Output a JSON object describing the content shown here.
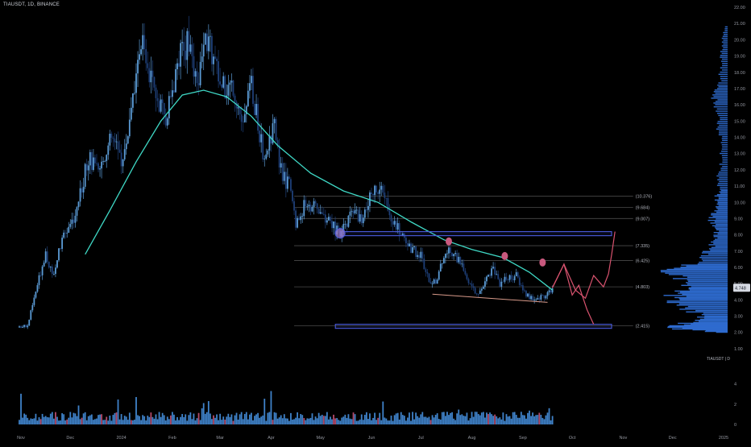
{
  "header": {
    "symbol_info": "TIAUSDT, 1D, BINANCE"
  },
  "watermark": "TIAUSDT | D",
  "colors": {
    "background": "#000000",
    "candle_up": "#5b9bd5",
    "candle_down": "#1e3f78",
    "volume_up": "#3f82c9",
    "volume_down": "#b34a6a",
    "moving_average": "#3fd9c6",
    "fib_line": "#4a4a4a",
    "box_border": "#4b5bdc",
    "projection": "#d9536f",
    "marker": "#c8597e",
    "support_line": "#d89a8a",
    "last_price_bg": "#d5d9e2"
  },
  "chart_data": {
    "type": "candlestick",
    "symbol": "TIAUSDT",
    "interval": "1D",
    "exchange": "BINANCE",
    "last_price_label": "4.748",
    "price_axis": {
      "ticks": [
        "1.00",
        "2.00",
        "3.00",
        "4.00",
        "5.00",
        "6.00",
        "7.00",
        "8.00",
        "9.00",
        "10.00",
        "11.00",
        "12.00",
        "13.00",
        "14.00",
        "15.00",
        "16.00",
        "17.00",
        "18.00",
        "19.00",
        "20.00",
        "21.00",
        "22.00"
      ],
      "ylim": [
        0.5,
        22.3
      ]
    },
    "volume_axis": {
      "ticks": [
        "0",
        "2",
        "4"
      ],
      "ylim": [
        0,
        5
      ]
    },
    "time_axis": {
      "labels": [
        "Nov",
        "Dec",
        "2024",
        "Feb",
        "Mar",
        "Apr",
        "May",
        "Jun",
        "Jul",
        "Aug",
        "Sep",
        "Oct",
        "Nov",
        "Dec",
        "2025"
      ],
      "label_dates": [
        "2023-11-01",
        "2023-12-01",
        "2024-01-01",
        "2024-02-01",
        "2024-03-01",
        "2024-04-01",
        "2024-05-01",
        "2024-06-01",
        "2024-07-01",
        "2024-08-01",
        "2024-09-01",
        "2024-10-01",
        "2024-11-01",
        "2024-12-01",
        "2025-01-01"
      ]
    },
    "price_anchors": [
      [
        "2023-10-31",
        2.3
      ],
      [
        "2023-11-05",
        2.4
      ],
      [
        "2023-11-10",
        4.5
      ],
      [
        "2023-11-16",
        7.0
      ],
      [
        "2023-11-20",
        5.5
      ],
      [
        "2023-11-27",
        8.0
      ],
      [
        "2023-12-05",
        9.5
      ],
      [
        "2023-12-12",
        12.8
      ],
      [
        "2023-12-18",
        11.8
      ],
      [
        "2023-12-26",
        14.0
      ],
      [
        "2024-01-02",
        12.5
      ],
      [
        "2024-01-08",
        16.3
      ],
      [
        "2024-01-14",
        20.0
      ],
      [
        "2024-01-20",
        17.0
      ],
      [
        "2024-01-28",
        15.0
      ],
      [
        "2024-02-06",
        19.0
      ],
      [
        "2024-02-10",
        19.8
      ],
      [
        "2024-02-16",
        17.0
      ],
      [
        "2024-02-21",
        20.3
      ],
      [
        "2024-02-25",
        19.2
      ],
      [
        "2024-03-02",
        17.0
      ],
      [
        "2024-03-09",
        17.3
      ],
      [
        "2024-03-15",
        14.6
      ],
      [
        "2024-03-20",
        17.2
      ],
      [
        "2024-03-27",
        13.0
      ],
      [
        "2024-04-03",
        14.5
      ],
      [
        "2024-04-08",
        11.5
      ],
      [
        "2024-04-13",
        11.0
      ],
      [
        "2024-04-16",
        8.6
      ],
      [
        "2024-04-22",
        10.0
      ],
      [
        "2024-04-29",
        9.6
      ],
      [
        "2024-05-07",
        8.8
      ],
      [
        "2024-05-13",
        8.0
      ],
      [
        "2024-05-20",
        9.4
      ],
      [
        "2024-05-27",
        8.8
      ],
      [
        "2024-06-01",
        10.6
      ],
      [
        "2024-06-05",
        11.0
      ],
      [
        "2024-06-10",
        10.0
      ],
      [
        "2024-06-15",
        8.7
      ],
      [
        "2024-06-20",
        8.0
      ],
      [
        "2024-06-25",
        7.1
      ],
      [
        "2024-07-01",
        6.8
      ],
      [
        "2024-07-05",
        5.4
      ],
      [
        "2024-07-10",
        5.0
      ],
      [
        "2024-07-16",
        7.0
      ],
      [
        "2024-07-22",
        6.8
      ],
      [
        "2024-07-28",
        5.6
      ],
      [
        "2024-08-05",
        4.2
      ],
      [
        "2024-08-10",
        5.4
      ],
      [
        "2024-08-14",
        6.0
      ],
      [
        "2024-08-18",
        5.0
      ],
      [
        "2024-08-24",
        5.4
      ],
      [
        "2024-08-28",
        5.5
      ],
      [
        "2024-09-02",
        4.5
      ],
      [
        "2024-09-07",
        4.0
      ],
      [
        "2024-09-11",
        4.1
      ],
      [
        "2024-09-16",
        4.4
      ],
      [
        "2024-09-19",
        4.75
      ]
    ],
    "moving_average": [
      [
        "2023-12-10",
        6.8
      ],
      [
        "2023-12-25",
        9.5
      ],
      [
        "2024-01-10",
        12.5
      ],
      [
        "2024-01-25",
        15.0
      ],
      [
        "2024-02-07",
        16.6
      ],
      [
        "2024-02-20",
        16.9
      ],
      [
        "2024-03-05",
        16.5
      ],
      [
        "2024-03-20",
        15.3
      ],
      [
        "2024-04-05",
        13.5
      ],
      [
        "2024-04-25",
        11.8
      ],
      [
        "2024-05-15",
        10.7
      ],
      [
        "2024-06-05",
        10.0
      ],
      [
        "2024-06-25",
        8.8
      ],
      [
        "2024-07-15",
        7.7
      ],
      [
        "2024-08-01",
        7.1
      ],
      [
        "2024-08-20",
        6.6
      ],
      [
        "2024-09-05",
        5.7
      ],
      [
        "2024-09-19",
        4.6
      ]
    ],
    "fib_levels": [
      {
        "label": "(10.376)",
        "value": 10.376
      },
      {
        "label": "(9.684)",
        "value": 9.684
      },
      {
        "label": "(9.007)",
        "value": 9.007
      },
      {
        "label": "(7.335)",
        "value": 7.335
      },
      {
        "label": "(6.425)",
        "value": 6.425
      },
      {
        "label": "(4.803)",
        "value": 4.803
      },
      {
        "label": "(2.415)",
        "value": 2.415
      }
    ],
    "fib_range": [
      "2024-04-15",
      "2024-11-07"
    ],
    "boxes": [
      {
        "from": "2024-05-13",
        "to": "2024-12-31",
        "top": 8.2,
        "bottom": 7.95
      },
      {
        "from": "2024-05-13",
        "to": "2024-12-31",
        "top": 2.5,
        "bottom": 2.25
      }
    ],
    "support_line": [
      [
        "2024-07-08",
        4.35
      ],
      [
        "2024-09-16",
        3.85
      ]
    ],
    "markers": [
      {
        "date": "2024-07-18",
        "value": 7.6
      },
      {
        "date": "2024-08-21",
        "value": 6.7
      },
      {
        "date": "2024-09-13",
        "value": 6.3
      }
    ],
    "highlight_circle": {
      "date": "2024-05-13",
      "value": 8.1
    },
    "projection_up": [
      [
        "2024-09-19",
        4.75
      ],
      [
        "2024-09-26",
        6.2
      ],
      [
        "2024-10-03",
        4.6
      ],
      [
        "2024-10-09",
        4.1
      ],
      [
        "2024-10-14",
        5.5
      ],
      [
        "2024-10-20",
        4.8
      ],
      [
        "2024-10-23",
        5.6
      ],
      [
        "2024-10-25",
        6.8
      ],
      [
        "2024-10-27",
        8.2
      ]
    ],
    "projection_down": [
      [
        "2024-09-19",
        4.75
      ],
      [
        "2024-09-26",
        6.2
      ],
      [
        "2024-10-01",
        4.3
      ],
      [
        "2024-10-05",
        4.9
      ],
      [
        "2024-10-10",
        3.4
      ],
      [
        "2024-10-14",
        2.5
      ]
    ],
    "volume_seed": 17,
    "volume_profile": [
      [
        2.0,
        12
      ],
      [
        2.3,
        80
      ],
      [
        2.6,
        45
      ],
      [
        3.0,
        32
      ],
      [
        3.5,
        55
      ],
      [
        4.0,
        75
      ],
      [
        4.4,
        58
      ],
      [
        4.8,
        48
      ],
      [
        5.3,
        62
      ],
      [
        5.8,
        70
      ],
      [
        6.2,
        42
      ],
      [
        6.8,
        28
      ],
      [
        7.3,
        20
      ],
      [
        7.8,
        16
      ],
      [
        8.3,
        13
      ],
      [
        8.8,
        20
      ],
      [
        9.3,
        18
      ],
      [
        9.8,
        15
      ],
      [
        10.3,
        14
      ],
      [
        10.8,
        10
      ],
      [
        11.5,
        12
      ],
      [
        12.2,
        9
      ],
      [
        13.0,
        8
      ],
      [
        13.8,
        7
      ],
      [
        14.5,
        12
      ],
      [
        15.2,
        10
      ],
      [
        16.0,
        15
      ],
      [
        16.6,
        18
      ],
      [
        17.2,
        11
      ],
      [
        18.0,
        9
      ],
      [
        18.8,
        8
      ],
      [
        19.5,
        7
      ],
      [
        20.2,
        6
      ],
      [
        20.9,
        3
      ]
    ]
  }
}
